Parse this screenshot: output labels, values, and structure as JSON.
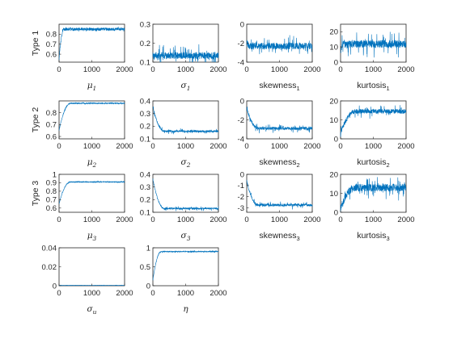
{
  "chart_data": [
    {
      "id": "mu_1",
      "type": "line",
      "row_label": "Type 1",
      "xlabel": {
        "base": "μ",
        "sub": "1",
        "style": "greek"
      },
      "xlim": [
        0,
        2000
      ],
      "ylim": [
        0.52,
        0.9
      ],
      "xticks": [
        "0",
        "1000",
        "2000"
      ],
      "yticks": [
        {
          "v": 0.8,
          "t": "0.8"
        },
        {
          "v": 0.7,
          "t": "0.7"
        },
        {
          "v": 0.6,
          "t": "0.6"
        }
      ],
      "series": {
        "start": 0.55,
        "end": 0.85,
        "burn": 150,
        "noise": 0.015,
        "spike": 0.015
      }
    },
    {
      "id": "sigma_1",
      "type": "line",
      "row_label": "",
      "xlabel": {
        "base": "σ",
        "sub": "1",
        "style": "greek"
      },
      "xlim": [
        0,
        2000
      ],
      "ylim": [
        0.1,
        0.3
      ],
      "xticks": [
        "0",
        "1000",
        "2000"
      ],
      "yticks": [
        {
          "v": 0.3,
          "t": "0.3"
        },
        {
          "v": 0.2,
          "t": "0.2"
        },
        {
          "v": 0.1,
          "t": "0.1"
        }
      ],
      "series": {
        "start": 0.15,
        "end": 0.135,
        "burn": 0,
        "noise": 0.018,
        "spike": 0.055
      }
    },
    {
      "id": "skewness_1",
      "type": "line",
      "row_label": "",
      "xlabel": {
        "base": "skewness",
        "sub": "1",
        "style": "sans"
      },
      "xlim": [
        0,
        2000
      ],
      "ylim": [
        -4,
        0
      ],
      "xticks": [
        "0",
        "1000",
        "2000"
      ],
      "yticks": [
        {
          "v": 0,
          "t": "0"
        },
        {
          "v": -2,
          "t": "-2"
        },
        {
          "v": -4,
          "t": "-4"
        }
      ],
      "series": {
        "start": -1.6,
        "end": -2.3,
        "burn": 80,
        "noise": 0.35,
        "spike": 0.9
      }
    },
    {
      "id": "kurtosis_1",
      "type": "line",
      "row_label": "",
      "xlabel": {
        "base": "kurtosis",
        "sub": "1",
        "style": "sans"
      },
      "xlim": [
        0,
        2000
      ],
      "ylim": [
        0,
        25
      ],
      "xticks": [
        "0",
        "1000",
        "2000"
      ],
      "yticks": [
        {
          "v": 20,
          "t": "20"
        },
        {
          "v": 10,
          "t": "10"
        },
        {
          "v": 0,
          "t": "0"
        }
      ],
      "series": {
        "start": 7,
        "end": 12,
        "burn": 100,
        "noise": 2.5,
        "spike": 7
      }
    },
    {
      "id": "mu_2",
      "type": "line",
      "row_label": "Type 2",
      "xlabel": {
        "base": "μ",
        "sub": "2",
        "style": "greek"
      },
      "xlim": [
        0,
        2000
      ],
      "ylim": [
        0.58,
        0.9
      ],
      "xticks": [
        "0",
        "1000",
        "2000"
      ],
      "yticks": [
        {
          "v": 0.8,
          "t": "0.8"
        },
        {
          "v": 0.7,
          "t": "0.7"
        },
        {
          "v": 0.6,
          "t": "0.6"
        }
      ],
      "series": {
        "start": 0.65,
        "end": 0.88,
        "burn": 350,
        "noise": 0.004,
        "spike": 0.008
      }
    },
    {
      "id": "sigma_2",
      "type": "line",
      "row_label": "",
      "xlabel": {
        "base": "σ",
        "sub": "2",
        "style": "greek"
      },
      "xlim": [
        0,
        2000
      ],
      "ylim": [
        0.1,
        0.4
      ],
      "xticks": [
        "0",
        "1000",
        "2000"
      ],
      "yticks": [
        {
          "v": 0.4,
          "t": "0.4"
        },
        {
          "v": 0.3,
          "t": "0.3"
        },
        {
          "v": 0.2,
          "t": "0.2"
        },
        {
          "v": 0.1,
          "t": "0.1"
        }
      ],
      "series": {
        "start": 0.35,
        "end": 0.16,
        "burn": 350,
        "noise": 0.008,
        "spike": 0.02
      }
    },
    {
      "id": "skewness_2",
      "type": "line",
      "row_label": "",
      "xlabel": {
        "base": "skewness",
        "sub": "2",
        "style": "sans"
      },
      "xlim": [
        0,
        2000
      ],
      "ylim": [
        -4,
        0
      ],
      "xticks": [
        "0",
        "1000",
        "2000"
      ],
      "yticks": [
        {
          "v": 0,
          "t": "0"
        },
        {
          "v": -2,
          "t": "-2"
        },
        {
          "v": -4,
          "t": "-4"
        }
      ],
      "series": {
        "start": -0.8,
        "end": -2.9,
        "burn": 350,
        "noise": 0.15,
        "spike": 0.4
      }
    },
    {
      "id": "kurtosis_2",
      "type": "line",
      "row_label": "",
      "xlabel": {
        "base": "kurtosis",
        "sub": "2",
        "style": "sans"
      },
      "xlim": [
        0,
        2000
      ],
      "ylim": [
        0,
        20
      ],
      "xticks": [
        "0",
        "1000",
        "2000"
      ],
      "yticks": [
        {
          "v": 20,
          "t": "20"
        },
        {
          "v": 10,
          "t": "10"
        },
        {
          "v": 0,
          "t": "0"
        }
      ],
      "series": {
        "start": 3,
        "end": 14.5,
        "burn": 450,
        "noise": 1.2,
        "spike": 3
      }
    },
    {
      "id": "mu_3",
      "type": "line",
      "row_label": "Type 3",
      "xlabel": {
        "base": "μ",
        "sub": "3",
        "style": "greek"
      },
      "xlim": [
        0,
        2000
      ],
      "ylim": [
        0.55,
        1
      ],
      "xticks": [
        "0",
        "1000",
        "2000"
      ],
      "yticks": [
        {
          "v": 1,
          "t": "1"
        },
        {
          "v": 0.9,
          "t": "0.9"
        },
        {
          "v": 0.8,
          "t": "0.8"
        },
        {
          "v": 0.7,
          "t": "0.7"
        },
        {
          "v": 0.6,
          "t": "0.6"
        }
      ],
      "series": {
        "start": 0.65,
        "end": 0.91,
        "burn": 350,
        "noise": 0.004,
        "spike": 0.01
      }
    },
    {
      "id": "sigma_3",
      "type": "line",
      "row_label": "",
      "xlabel": {
        "base": "σ",
        "sub": "3",
        "style": "greek"
      },
      "xlim": [
        0,
        2000
      ],
      "ylim": [
        0.1,
        0.4
      ],
      "xticks": [
        "0",
        "1000",
        "2000"
      ],
      "yticks": [
        {
          "v": 0.4,
          "t": "0.4"
        },
        {
          "v": 0.3,
          "t": "0.3"
        },
        {
          "v": 0.2,
          "t": "0.2"
        },
        {
          "v": 0.1,
          "t": "0.1"
        }
      ],
      "series": {
        "start": 0.36,
        "end": 0.13,
        "burn": 350,
        "noise": 0.006,
        "spike": 0.015
      }
    },
    {
      "id": "skewness_3",
      "type": "line",
      "row_label": "",
      "xlabel": {
        "base": "skewness",
        "sub": "3",
        "style": "sans"
      },
      "xlim": [
        0,
        2000
      ],
      "ylim": [
        -3.4,
        0
      ],
      "xticks": [
        "0",
        "1000",
        "2000"
      ],
      "yticks": [
        {
          "v": 0,
          "t": "0"
        },
        {
          "v": -1,
          "t": "-1"
        },
        {
          "v": -2,
          "t": "-2"
        },
        {
          "v": -3,
          "t": "-3"
        }
      ],
      "series": {
        "start": -0.6,
        "end": -2.75,
        "burn": 350,
        "noise": 0.12,
        "spike": 0.3
      }
    },
    {
      "id": "kurtosis_3",
      "type": "line",
      "row_label": "",
      "xlabel": {
        "base": "kurtosis",
        "sub": "3",
        "style": "sans"
      },
      "xlim": [
        0,
        2000
      ],
      "ylim": [
        0,
        20
      ],
      "xticks": [
        "0",
        "1000",
        "2000"
      ],
      "yticks": [
        {
          "v": 20,
          "t": "20"
        },
        {
          "v": 10,
          "t": "10"
        },
        {
          "v": 0,
          "t": "0"
        }
      ],
      "series": {
        "start": 2,
        "end": 13,
        "burn": 450,
        "noise": 2,
        "spike": 5
      }
    },
    {
      "id": "sigma_u",
      "type": "line",
      "row_label": "",
      "xlabel": {
        "base": "σ",
        "sub": "u",
        "style": "greek"
      },
      "xlim": [
        0,
        2000
      ],
      "ylim": [
        0,
        0.04
      ],
      "xticks": [
        "0",
        "1000",
        "2000"
      ],
      "yticks": [
        {
          "v": 0.04,
          "t": "0.04"
        },
        {
          "v": 0.02,
          "t": "0.02"
        },
        {
          "v": 0,
          "t": "0"
        }
      ],
      "series": {
        "start": 0.0005,
        "end": 0.0004,
        "burn": 0,
        "noise": 0.0001,
        "spike": 0.0002
      }
    },
    {
      "id": "eta",
      "type": "line",
      "row_label": "",
      "xlabel": {
        "base": "η",
        "sub": "",
        "style": "greek"
      },
      "xlim": [
        0,
        2000
      ],
      "ylim": [
        0,
        1
      ],
      "xticks": [
        "0",
        "1000",
        "2000"
      ],
      "yticks": [
        {
          "v": 1,
          "t": "1"
        },
        {
          "v": 0.5,
          "t": "0.5"
        },
        {
          "v": 0,
          "t": "0"
        }
      ],
      "series": {
        "start": 0.15,
        "end": 0.9,
        "burn": 250,
        "noise": 0.01,
        "spike": 0.03
      }
    }
  ],
  "colors": {
    "trace": "#0072bd",
    "axis": "#262626"
  }
}
